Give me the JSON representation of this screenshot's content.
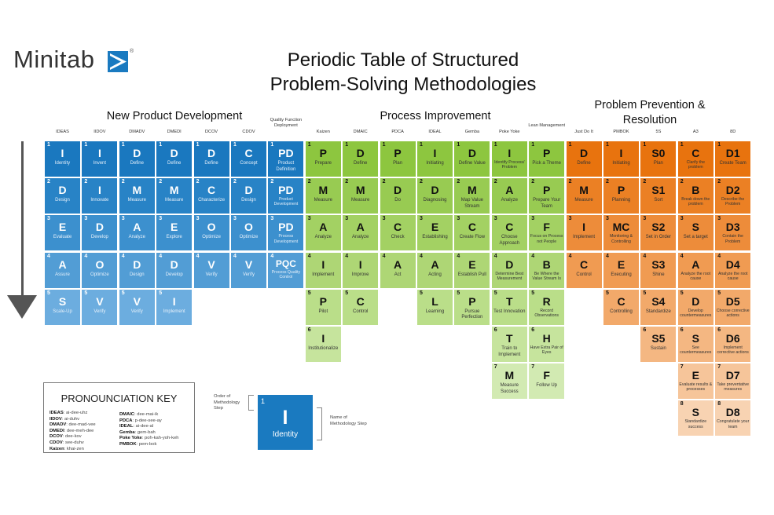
{
  "logo": {
    "text": "Minitab",
    "mark": "®",
    "brand_color": "#1a7ac0"
  },
  "title": {
    "line1": "Periodic Table of Structured",
    "line2": "Problem-Solving Methodologies"
  },
  "groups": [
    {
      "label": "New Product Development",
      "color": "blue"
    },
    {
      "label": "Process Improvement",
      "color": "green"
    },
    {
      "label": "Problem Prevention & Resolution",
      "color": "orange"
    }
  ],
  "colors": {
    "blue": [
      "#1a78bf",
      "#2883c6",
      "#3c90ce",
      "#529dd5",
      "#6caddf"
    ],
    "green": [
      "#8dc63f",
      "#98cb52",
      "#a3d163",
      "#aed675",
      "#bade89",
      "#c6e49d",
      "#d2eab2"
    ],
    "orange": [
      "#e8730e",
      "#eb8024",
      "#ed8c3a",
      "#f09b52",
      "#f2a96a",
      "#f4b782",
      "#f6c59a",
      "#f8d3b2"
    ]
  },
  "columns": [
    {
      "name": "IDEAS",
      "group": "blue",
      "steps": [
        {
          "s": "I",
          "n": "Identity"
        },
        {
          "s": "D",
          "n": "Design"
        },
        {
          "s": "E",
          "n": "Evaluate"
        },
        {
          "s": "A",
          "n": "Assure"
        },
        {
          "s": "S",
          "n": "Scale-Up"
        }
      ]
    },
    {
      "name": "IIDOV",
      "group": "blue",
      "steps": [
        {
          "s": "I",
          "n": "Invent"
        },
        {
          "s": "I",
          "n": "Innovate"
        },
        {
          "s": "D",
          "n": "Develop"
        },
        {
          "s": "O",
          "n": "Optimize"
        },
        {
          "s": "V",
          "n": "Verify"
        }
      ]
    },
    {
      "name": "DMADV",
      "group": "blue",
      "steps": [
        {
          "s": "D",
          "n": "Define"
        },
        {
          "s": "M",
          "n": "Measure"
        },
        {
          "s": "A",
          "n": "Analyze"
        },
        {
          "s": "D",
          "n": "Design"
        },
        {
          "s": "V",
          "n": "Verify"
        }
      ]
    },
    {
      "name": "DMEDI",
      "group": "blue",
      "steps": [
        {
          "s": "D",
          "n": "Define"
        },
        {
          "s": "M",
          "n": "Measure"
        },
        {
          "s": "E",
          "n": "Explore"
        },
        {
          "s": "D",
          "n": "Develop"
        },
        {
          "s": "I",
          "n": "Implement"
        }
      ]
    },
    {
      "name": "DCOV",
      "group": "blue",
      "steps": [
        {
          "s": "D",
          "n": "Define"
        },
        {
          "s": "C",
          "n": "Characterize"
        },
        {
          "s": "O",
          "n": "Optimize"
        },
        {
          "s": "V",
          "n": "Verify"
        }
      ]
    },
    {
      "name": "CDOV",
      "group": "blue",
      "steps": [
        {
          "s": "C",
          "n": "Concept"
        },
        {
          "s": "D",
          "n": "Design"
        },
        {
          "s": "O",
          "n": "Optimize"
        },
        {
          "s": "V",
          "n": "Verify"
        }
      ]
    },
    {
      "name": "Quality Function Deployment",
      "group": "blue",
      "steps": [
        {
          "s": "PD",
          "n": "Product Definition"
        },
        {
          "s": "PD",
          "n": "Product Development"
        },
        {
          "s": "PD",
          "n": "Process Development"
        },
        {
          "s": "PQC",
          "n": "Process Quality Control"
        }
      ]
    },
    {
      "name": "Kaizen",
      "group": "green",
      "steps": [
        {
          "s": "P",
          "n": "Prepare"
        },
        {
          "s": "M",
          "n": "Measure"
        },
        {
          "s": "A",
          "n": "Analyze"
        },
        {
          "s": "I",
          "n": "Implement"
        },
        {
          "s": "P",
          "n": "Pilot"
        },
        {
          "s": "I",
          "n": "Institutionalize"
        }
      ]
    },
    {
      "name": "DMAIC",
      "group": "green",
      "steps": [
        {
          "s": "D",
          "n": "Define"
        },
        {
          "s": "M",
          "n": "Measure"
        },
        {
          "s": "A",
          "n": "Analyze"
        },
        {
          "s": "I",
          "n": "Improve"
        },
        {
          "s": "C",
          "n": "Control"
        }
      ]
    },
    {
      "name": "PDCA",
      "group": "green",
      "steps": [
        {
          "s": "P",
          "n": "Plan"
        },
        {
          "s": "D",
          "n": "Do"
        },
        {
          "s": "C",
          "n": "Check"
        },
        {
          "s": "A",
          "n": "Act"
        }
      ]
    },
    {
      "name": "IDEAL",
      "group": "green",
      "steps": [
        {
          "s": "I",
          "n": "Initiating"
        },
        {
          "s": "D",
          "n": "Diagnosing"
        },
        {
          "s": "E",
          "n": "Establishing"
        },
        {
          "s": "A",
          "n": "Acting"
        },
        {
          "s": "L",
          "n": "Learning"
        }
      ]
    },
    {
      "name": "Gemba",
      "group": "green",
      "steps": [
        {
          "s": "D",
          "n": "Define Value"
        },
        {
          "s": "M",
          "n": "Map Value Stream"
        },
        {
          "s": "C",
          "n": "Create Flow"
        },
        {
          "s": "E",
          "n": "Establish Pull"
        },
        {
          "s": "P",
          "n": "Pursue Perfection"
        }
      ]
    },
    {
      "name": "Poke Yoke",
      "group": "green",
      "steps": [
        {
          "s": "I",
          "n": "Identify Process/ Problem"
        },
        {
          "s": "A",
          "n": "Analyze"
        },
        {
          "s": "C",
          "n": "Choose Approach"
        },
        {
          "s": "D",
          "n": "Determine Best Measurement"
        },
        {
          "s": "T",
          "n": "Test Innovation"
        },
        {
          "s": "T",
          "n": "Train to Implement"
        },
        {
          "s": "M",
          "n": "Measure Success"
        }
      ]
    },
    {
      "name": "Lean Management",
      "group": "green",
      "steps": [
        {
          "s": "P",
          "n": "Pick a Theme"
        },
        {
          "s": "P",
          "n": "Prepare Your Team"
        },
        {
          "s": "F",
          "n": "Focus on Process not People"
        },
        {
          "s": "B",
          "n": "Be Where the Value Stream Is"
        },
        {
          "s": "R",
          "n": "Record Observations"
        },
        {
          "s": "H",
          "n": "Have Extra Pair of Eyes"
        },
        {
          "s": "F",
          "n": "Follow Up"
        }
      ]
    },
    {
      "name": "Just Do It",
      "group": "orange",
      "steps": [
        {
          "s": "D",
          "n": "Define"
        },
        {
          "s": "M",
          "n": "Measure"
        },
        {
          "s": "I",
          "n": "Implement"
        },
        {
          "s": "C",
          "n": "Control"
        }
      ]
    },
    {
      "name": "PMBOK",
      "group": "orange",
      "steps": [
        {
          "s": "I",
          "n": "Initiating"
        },
        {
          "s": "P",
          "n": "Planning"
        },
        {
          "s": "MC",
          "n": "Monitoring & Controlling"
        },
        {
          "s": "E",
          "n": "Executing"
        },
        {
          "s": "C",
          "n": "Controlling"
        }
      ]
    },
    {
      "name": "5S",
      "group": "orange",
      "steps": [
        {
          "s": "S0",
          "n": "Plan"
        },
        {
          "s": "S1",
          "n": "Sort"
        },
        {
          "s": "S2",
          "n": "Set in Order"
        },
        {
          "s": "S3",
          "n": "Shine"
        },
        {
          "s": "S4",
          "n": "Standardize"
        },
        {
          "s": "S5",
          "n": "Sustain"
        }
      ]
    },
    {
      "name": "A3",
      "group": "orange",
      "steps": [
        {
          "s": "C",
          "n": "Clarify the problem"
        },
        {
          "s": "B",
          "n": "Break down the problem"
        },
        {
          "s": "S",
          "n": "Set a target"
        },
        {
          "s": "A",
          "n": "Analyze the root cause"
        },
        {
          "s": "D",
          "n": "Develop countermeasures"
        },
        {
          "s": "S",
          "n": "See countermeasures"
        },
        {
          "s": "E",
          "n": "Evaluate results & processes"
        },
        {
          "s": "S",
          "n": "Standardize success"
        }
      ]
    },
    {
      "name": "8D",
      "group": "orange",
      "steps": [
        {
          "s": "D1",
          "n": "Create Team"
        },
        {
          "s": "D2",
          "n": "Describe the Problem"
        },
        {
          "s": "D3",
          "n": "Contain the Problem"
        },
        {
          "s": "D4",
          "n": "Analyze the root cause"
        },
        {
          "s": "D5",
          "n": "Choose corrective actions"
        },
        {
          "s": "D6",
          "n": "Implement corrective actions"
        },
        {
          "s": "D7",
          "n": "Take preventative measures"
        },
        {
          "s": "D8",
          "n": "Congratulate your team"
        }
      ]
    }
  ],
  "key": {
    "title": "PRONOUNCIATION KEY",
    "left": [
      {
        "t": "IDEAS",
        "p": "ai-dee-uhz"
      },
      {
        "t": "IIDOV",
        "p": "ai-duhv"
      },
      {
        "t": "DMADV",
        "p": "dee-mad-vee"
      },
      {
        "t": "DMEDI",
        "p": "dee-meh-dee"
      },
      {
        "t": "DCOV",
        "p": "dee-kov"
      },
      {
        "t": "CDOV",
        "p": "see-duhv"
      },
      {
        "t": "Kaizen",
        "p": "khai-zen"
      }
    ],
    "right": [
      {
        "t": "DMAIC",
        "p": "dee-mai-ik"
      },
      {
        "t": "PDCA",
        "p": "p-dee-see-ay"
      },
      {
        "t": "IDEAL",
        "p": "ai-dee-al"
      },
      {
        "t": "Gemba",
        "p": "gem-bah"
      },
      {
        "t": "Poke Yoke",
        "p": "poh-kah-yoh-keh"
      },
      {
        "t": "PMBOK",
        "p": "pem-bok"
      }
    ]
  },
  "legend": {
    "order_label": "Order of Methodology Step",
    "name_label": "Name of Methodology Step",
    "sample": {
      "num": "1",
      "sym": "I",
      "name": "Identity"
    }
  }
}
